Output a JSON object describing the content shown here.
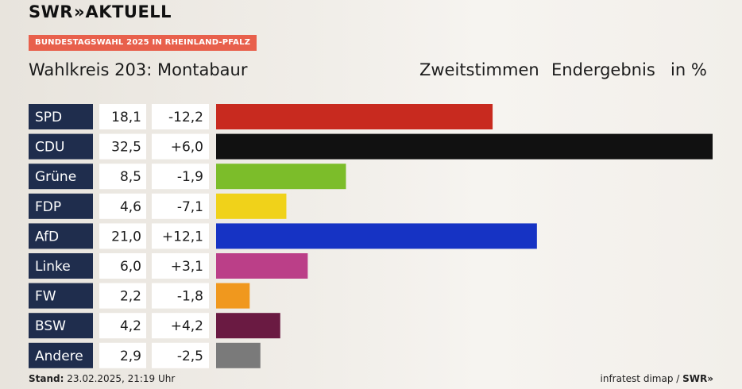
{
  "header": {
    "brand": "SWR",
    "brand_arrows": "»",
    "brand_suffix": "AKTUELL",
    "badge": "BUNDESTAGSWAHL 2025 IN RHEINLAND-PFALZ",
    "title": "Wahlkreis 203: Montabaur",
    "vote_type": "Zweitstimmen",
    "result_type": "Endergebnis",
    "unit": "in %"
  },
  "footer": {
    "stand_label": "Stand:",
    "stand_value": "23.02.2025, 21:19 Uhr",
    "source": "infratest dimap /",
    "source_brand": "SWR»"
  },
  "chart_data": {
    "type": "bar",
    "orientation": "horizontal",
    "xlim": [
      0,
      32.5
    ],
    "categories": [
      "SPD",
      "CDU",
      "Grüne",
      "FDP",
      "AfD",
      "Linke",
      "FW",
      "BSW",
      "Andere"
    ],
    "value_labels": [
      "18,1",
      "32,5",
      "8,5",
      "4,6",
      "21,0",
      "6,0",
      "2,2",
      "4,2",
      "2,9"
    ],
    "change_labels": [
      "-12,2",
      "+6,0",
      "-1,9",
      "-7,1",
      "+12,1",
      "+3,1",
      "-1,8",
      "+4,2",
      "-2,5"
    ],
    "series": [
      {
        "values": [
          18.1,
          32.5,
          8.5,
          4.6,
          21.0,
          6.0,
          2.2,
          4.2,
          2.9
        ],
        "changes": [
          -12.2,
          6.0,
          -1.9,
          -7.1,
          12.1,
          3.1,
          -1.8,
          4.2,
          -2.5
        ]
      }
    ],
    "colors": [
      "#c82a1f",
      "#111111",
      "#7cbd2a",
      "#f0d21a",
      "#1633c4",
      "#bb3f88",
      "#f0981e",
      "#6a1a42",
      "#7a7a7a"
    ],
    "label_background": "#1f2d4d",
    "grid": false
  }
}
